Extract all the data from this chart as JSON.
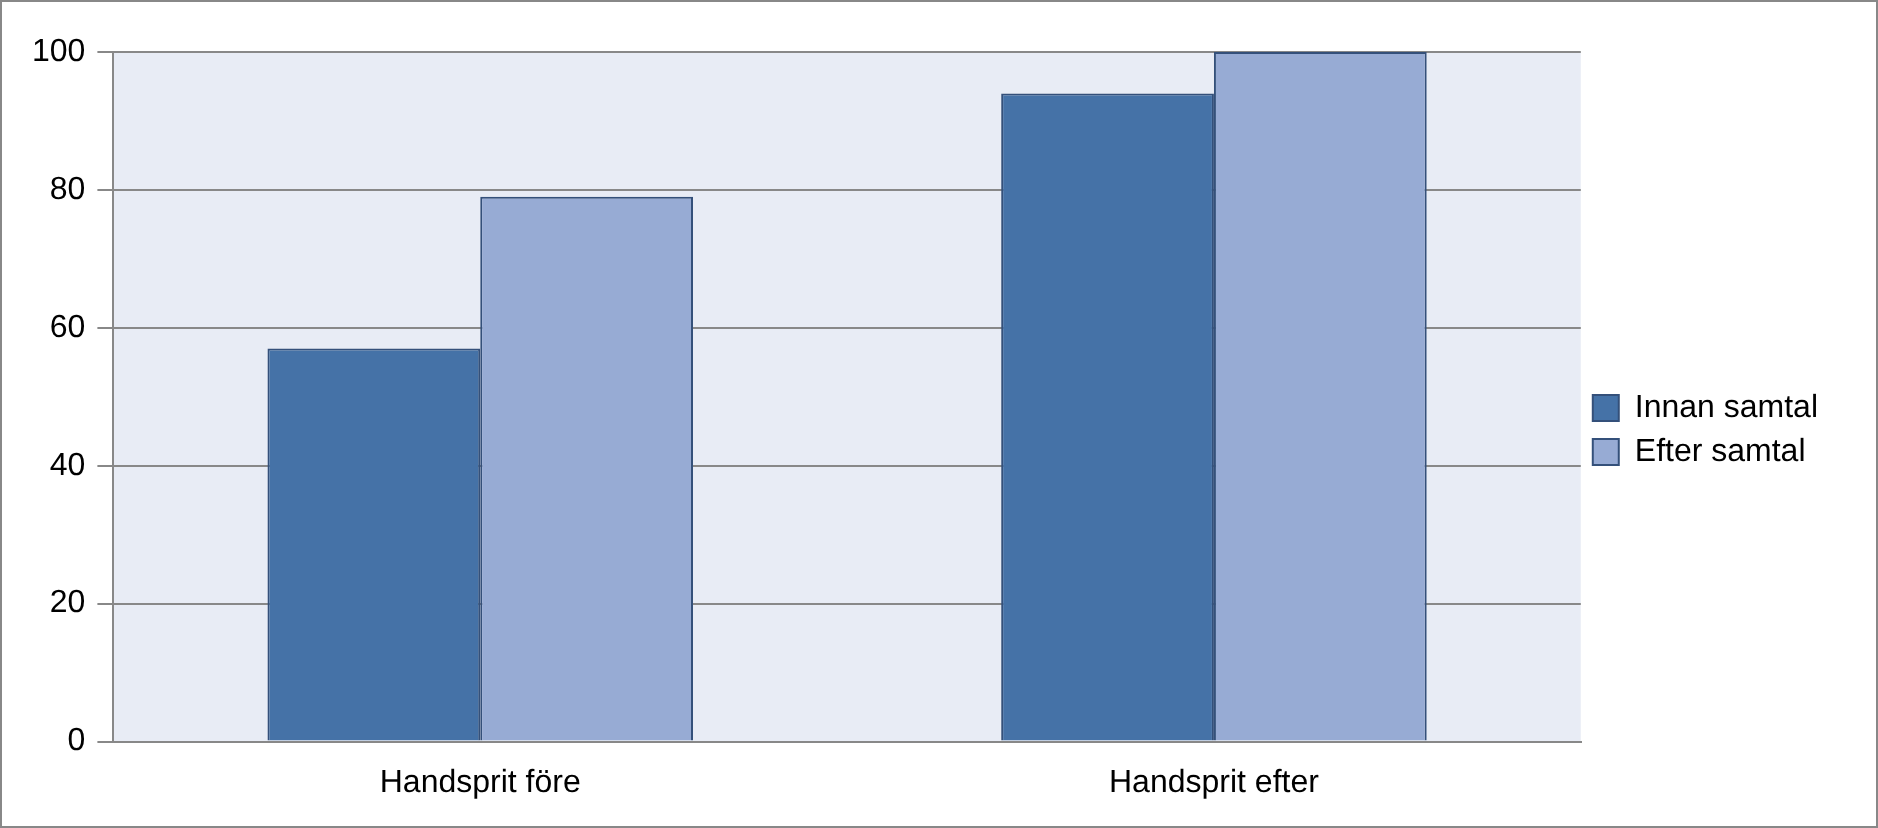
{
  "chart_data": {
    "type": "bar",
    "categories": [
      "Handsprit före",
      "Handsprit efter"
    ],
    "series": [
      {
        "name": "Innan samtal",
        "color": "#4572a7",
        "values": [
          57,
          94
        ]
      },
      {
        "name": "Efter samtal",
        "color": "#97abd4",
        "values": [
          79,
          100
        ]
      }
    ],
    "ylim": [
      0,
      100
    ],
    "yticks": [
      0,
      20,
      40,
      60,
      80,
      100
    ],
    "grid": "y",
    "legend": "right"
  }
}
